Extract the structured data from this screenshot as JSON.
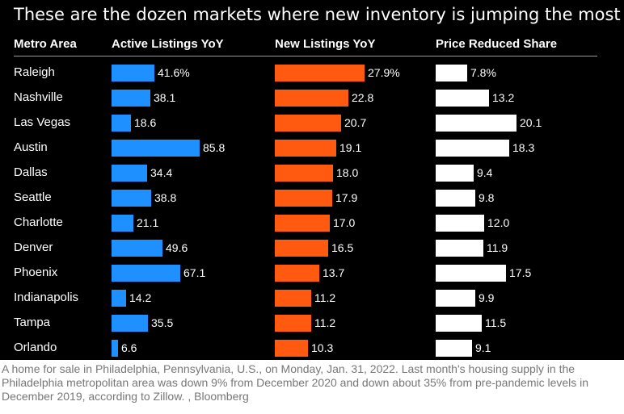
{
  "chart_data": {
    "type": "bar",
    "title": "These are the dozen markets where new inventory is jumping the most",
    "row_header": "Metro Area",
    "categories": [
      "Raleigh",
      "Nashville",
      "Las Vegas",
      "Austin",
      "Dallas",
      "Seattle",
      "Charlotte",
      "Denver",
      "Phoenix",
      "Indianapolis",
      "Tampa",
      "Orlando"
    ],
    "series": [
      {
        "name": "Active Listings YoY",
        "color": "#1e90ff",
        "values": [
          41.6,
          38.1,
          18.6,
          85.8,
          34.4,
          38.8,
          21.1,
          49.6,
          67.1,
          14.2,
          35.5,
          6.6
        ],
        "labels": [
          "41.6%",
          "38.1",
          "18.6",
          "85.8",
          "34.4",
          "38.8",
          "21.1",
          "49.6",
          "67.1",
          "14.2",
          "35.5",
          "6.6"
        ]
      },
      {
        "name": "New Listings YoY",
        "color": "#ff5a0f",
        "values": [
          27.9,
          22.8,
          20.7,
          19.1,
          18.0,
          17.9,
          17.0,
          16.5,
          13.7,
          11.2,
          11.2,
          10.3
        ],
        "labels": [
          "27.9%",
          "22.8",
          "20.7",
          "19.1",
          "18.0",
          "17.9",
          "17.0",
          "16.5",
          "13.7",
          "11.2",
          "11.2",
          "10.3"
        ]
      },
      {
        "name": "Price Reduced Share",
        "color": "#ffffff",
        "values": [
          7.8,
          13.2,
          20.1,
          18.3,
          9.4,
          9.8,
          12.0,
          11.9,
          17.5,
          9.9,
          11.5,
          9.1
        ],
        "labels": [
          "7.8%",
          "13.2",
          "20.1",
          "18.3",
          "9.4",
          "9.8",
          "12.0",
          "11.9",
          "17.5",
          "9.9",
          "11.5",
          "9.1"
        ]
      }
    ],
    "grid": false,
    "legend": "none"
  },
  "caption": "A home for sale in Philadelphia, Pennsylvania, U.S., on Monday, Jan. 31, 2022. Last month's housing supply in the Philadelphia metropolitan area was down 9% from December 2020 and down about 35% from pre-pandemic levels in December 2019, according to Zillow. , Bloomberg"
}
